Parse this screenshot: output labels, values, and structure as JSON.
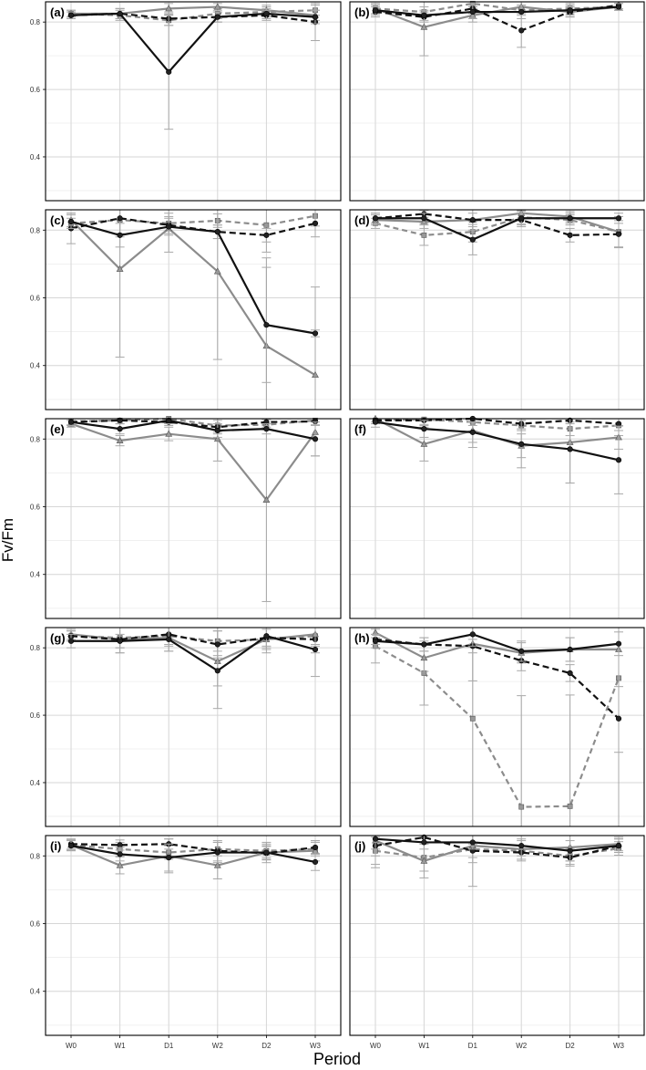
{
  "figure": {
    "ylabel": "Fv/Fm",
    "xlabel": "Period",
    "categories": [
      "W0",
      "W1",
      "D1",
      "W2",
      "D2",
      "W3"
    ],
    "y_ticks": [
      "0.4",
      "0.6",
      "0.8"
    ]
  },
  "colors": {
    "black": "#111111",
    "gray": "#8c8c8c",
    "grid": "#d6d6d6",
    "frame": "#000000"
  },
  "chart_data": [
    {
      "panel": "(a)",
      "type": "line",
      "ylim": [
        0.27,
        0.86
      ],
      "series": [
        {
          "name": "black-solid",
          "values": [
            0.82,
            0.825,
            0.652,
            0.815,
            0.825,
            0.815
          ],
          "err": [
            0.01,
            0.015,
            0.17,
            0.015,
            0.015,
            0.02
          ]
        },
        {
          "name": "gray-solid",
          "values": [
            0.825,
            0.825,
            0.84,
            0.845,
            0.835,
            0.82
          ],
          "err": [
            0.01,
            0.015,
            0.015,
            0.01,
            0.015,
            0.015
          ]
        },
        {
          "name": "black-dashed",
          "values": [
            0.82,
            0.825,
            0.81,
            0.815,
            0.82,
            0.8
          ],
          "err": [
            0.01,
            0.015,
            0.02,
            0.015,
            0.015,
            0.055
          ]
        },
        {
          "name": "gray-dashed",
          "values": [
            0.825,
            0.82,
            0.805,
            0.825,
            0.83,
            0.835
          ],
          "err": [
            0.01,
            0.015,
            0.015,
            0.015,
            0.015,
            0.015
          ]
        }
      ]
    },
    {
      "panel": "(b)",
      "type": "line",
      "ylim": [
        0.27,
        0.86
      ],
      "series": [
        {
          "name": "black-solid",
          "values": [
            0.835,
            0.82,
            0.83,
            0.83,
            0.835,
            0.845
          ],
          "err": [
            0.015,
            0.015,
            0.02,
            0.02,
            0.015,
            0.01
          ]
        },
        {
          "name": "gray-solid",
          "values": [
            0.84,
            0.785,
            0.82,
            0.845,
            0.83,
            0.845
          ],
          "err": [
            0.015,
            0.085,
            0.02,
            0.015,
            0.015,
            0.01
          ]
        },
        {
          "name": "black-dashed",
          "values": [
            0.83,
            0.815,
            0.84,
            0.775,
            0.83,
            0.85
          ],
          "err": [
            0.015,
            0.015,
            0.015,
            0.05,
            0.015,
            0.01
          ]
        },
        {
          "name": "gray-dashed",
          "values": [
            0.84,
            0.83,
            0.855,
            0.835,
            0.84,
            0.845
          ],
          "err": [
            0.015,
            0.015,
            0.01,
            0.015,
            0.015,
            0.01
          ]
        }
      ]
    },
    {
      "panel": "(c)",
      "type": "line",
      "ylim": [
        0.27,
        0.86
      ],
      "series": [
        {
          "name": "black-solid",
          "values": [
            0.825,
            0.785,
            0.81,
            0.795,
            0.52,
            0.495
          ],
          "err": [
            0.02,
            0.035,
            0.025,
            0.02,
            0.17,
            0.01
          ]
        },
        {
          "name": "gray-solid",
          "values": [
            0.83,
            0.685,
            0.805,
            0.678,
            0.458,
            0.372
          ],
          "err": [
            0.02,
            0.26,
            0.07,
            0.26,
            0.26,
            0.26
          ]
        },
        {
          "name": "black-dashed",
          "values": [
            0.805,
            0.835,
            0.815,
            0.795,
            0.785,
            0.82
          ],
          "err": [
            0.045,
            0.045,
            0.025,
            0.02,
            0.02,
            0.04
          ]
        },
        {
          "name": "gray-dashed",
          "values": [
            0.82,
            0.83,
            0.82,
            0.828,
            0.815,
            0.842
          ],
          "err": [
            0.015,
            0.05,
            0.03,
            0.02,
            0.08,
            0.03
          ]
        }
      ]
    },
    {
      "panel": "(d)",
      "type": "line",
      "ylim": [
        0.27,
        0.86
      ],
      "series": [
        {
          "name": "black-solid",
          "values": [
            0.835,
            0.835,
            0.772,
            0.835,
            0.835,
            0.835
          ],
          "err": [
            0.015,
            0.015,
            0.045,
            0.02,
            0.015,
            0.015
          ]
        },
        {
          "name": "gray-solid",
          "values": [
            0.83,
            0.825,
            0.83,
            0.85,
            0.84,
            0.795
          ],
          "err": [
            0.015,
            0.02,
            0.02,
            0.015,
            0.015,
            0.045
          ]
        },
        {
          "name": "black-dashed",
          "values": [
            0.835,
            0.848,
            0.83,
            0.83,
            0.785,
            0.788
          ],
          "err": [
            0.015,
            0.01,
            0.03,
            0.02,
            0.02,
            0.04
          ]
        },
        {
          "name": "gray-dashed",
          "values": [
            0.82,
            0.785,
            0.795,
            0.838,
            0.83,
            0.795
          ],
          "err": [
            0.015,
            0.03,
            0.03,
            0.02,
            0.015,
            0.045
          ]
        }
      ]
    },
    {
      "panel": "(e)",
      "type": "line",
      "ylim": [
        0.27,
        0.86
      ],
      "series": [
        {
          "name": "black-solid",
          "values": [
            0.85,
            0.83,
            0.855,
            0.825,
            0.83,
            0.8
          ],
          "err": [
            0.01,
            0.015,
            0.01,
            0.02,
            0.015,
            0.05
          ]
        },
        {
          "name": "gray-solid",
          "values": [
            0.845,
            0.795,
            0.815,
            0.8,
            0.62,
            0.82
          ],
          "err": [
            0.01,
            0.015,
            0.02,
            0.065,
            0.3,
            0.07
          ]
        },
        {
          "name": "black-dashed",
          "values": [
            0.85,
            0.855,
            0.85,
            0.835,
            0.85,
            0.852
          ],
          "err": [
            0.01,
            0.01,
            0.01,
            0.02,
            0.015,
            0.01
          ]
        },
        {
          "name": "gray-dashed",
          "values": [
            0.852,
            0.855,
            0.86,
            0.84,
            0.842,
            0.855
          ],
          "err": [
            0.01,
            0.01,
            0.01,
            0.02,
            0.015,
            0.015
          ]
        }
      ]
    },
    {
      "panel": "(f)",
      "type": "line",
      "ylim": [
        0.27,
        0.86
      ],
      "series": [
        {
          "name": "black-solid",
          "values": [
            0.85,
            0.83,
            0.82,
            0.785,
            0.77,
            0.738
          ],
          "err": [
            0.015,
            0.025,
            0.03,
            0.07,
            0.1,
            0.1
          ]
        },
        {
          "name": "gray-solid",
          "values": [
            0.86,
            0.785,
            0.825,
            0.78,
            0.79,
            0.805
          ],
          "err": [
            0.01,
            0.05,
            0.05,
            0.035,
            0.12,
            0.035
          ]
        },
        {
          "name": "black-dashed",
          "values": [
            0.855,
            0.855,
            0.86,
            0.845,
            0.855,
            0.845
          ],
          "err": [
            0.01,
            0.015,
            0.01,
            0.015,
            0.01,
            0.02
          ]
        },
        {
          "name": "gray-dashed",
          "values": [
            0.855,
            0.858,
            0.85,
            0.84,
            0.83,
            0.84
          ],
          "err": [
            0.01,
            0.015,
            0.01,
            0.015,
            0.02,
            0.03
          ]
        }
      ]
    },
    {
      "panel": "(g)",
      "type": "line",
      "ylim": [
        0.27,
        0.86
      ],
      "series": [
        {
          "name": "black-solid",
          "values": [
            0.82,
            0.82,
            0.825,
            0.732,
            0.835,
            0.795
          ],
          "err": [
            0.02,
            0.02,
            0.035,
            0.045,
            0.03,
            0.08
          ]
        },
        {
          "name": "gray-solid",
          "values": [
            0.84,
            0.825,
            0.83,
            0.76,
            0.825,
            0.84
          ],
          "err": [
            0.015,
            0.04,
            0.04,
            0.14,
            0.04,
            0.03
          ]
        },
        {
          "name": "black-dashed",
          "values": [
            0.835,
            0.825,
            0.84,
            0.81,
            0.83,
            0.825
          ],
          "err": [
            0.015,
            0.04,
            0.03,
            0.04,
            0.03,
            0.04
          ]
        },
        {
          "name": "gray-dashed",
          "values": [
            0.835,
            0.83,
            0.835,
            0.82,
            0.825,
            0.835
          ],
          "err": [
            0.015,
            0.03,
            0.03,
            0.03,
            0.03,
            0.03
          ]
        }
      ]
    },
    {
      "panel": "(h)",
      "type": "line",
      "ylim": [
        0.27,
        0.86
      ],
      "series": [
        {
          "name": "black-solid",
          "values": [
            0.82,
            0.81,
            0.84,
            0.79,
            0.795,
            0.812
          ],
          "err": [
            0.02,
            0.02,
            0.035,
            0.03,
            0.035,
            0.035
          ]
        },
        {
          "name": "gray-solid",
          "values": [
            0.845,
            0.77,
            0.812,
            0.785,
            0.795,
            0.795
          ],
          "err": [
            0.015,
            0.04,
            0.11,
            0.03,
            0.035,
            0.11
          ]
        },
        {
          "name": "black-dashed",
          "values": [
            0.825,
            0.81,
            0.805,
            0.762,
            0.725,
            0.59
          ],
          "err": [
            0.015,
            0.02,
            0.02,
            0.03,
            0.025,
            0.33
          ]
        },
        {
          "name": "gray-dashed",
          "values": [
            0.805,
            0.725,
            0.59,
            0.328,
            0.33,
            0.71
          ],
          "err": [
            0.05,
            0.095,
            0.33,
            0.33,
            0.33,
            0.22
          ]
        }
      ]
    },
    {
      "panel": "(i)",
      "type": "line",
      "ylim": [
        0.27,
        0.86
      ],
      "series": [
        {
          "name": "black-solid",
          "values": [
            0.83,
            0.805,
            0.795,
            0.81,
            0.81,
            0.782
          ],
          "err": [
            0.015,
            0.02,
            0.04,
            0.03,
            0.02,
            0.025
          ]
        },
        {
          "name": "gray-solid",
          "values": [
            0.832,
            0.772,
            0.8,
            0.772,
            0.81,
            0.815
          ],
          "err": [
            0.015,
            0.025,
            0.05,
            0.04,
            0.03,
            0.03
          ]
        },
        {
          "name": "black-dashed",
          "values": [
            0.835,
            0.832,
            0.835,
            0.815,
            0.808,
            0.825
          ],
          "err": [
            0.015,
            0.015,
            0.015,
            0.03,
            0.02,
            0.02
          ]
        },
        {
          "name": "gray-dashed",
          "values": [
            0.832,
            0.82,
            0.81,
            0.82,
            0.815,
            0.82
          ],
          "err": [
            0.015,
            0.02,
            0.02,
            0.02,
            0.02,
            0.02
          ]
        }
      ]
    },
    {
      "panel": "(j)",
      "type": "line",
      "ylim": [
        0.27,
        0.86
      ],
      "series": [
        {
          "name": "black-solid",
          "values": [
            0.85,
            0.84,
            0.84,
            0.83,
            0.815,
            0.83
          ],
          "err": [
            0.03,
            0.02,
            0.02,
            0.03,
            0.03,
            0.02
          ]
        },
        {
          "name": "gray-solid",
          "values": [
            0.845,
            0.785,
            0.83,
            0.82,
            0.825,
            0.835
          ],
          "err": [
            0.08,
            0.05,
            0.12,
            0.03,
            0.04,
            0.02
          ]
        },
        {
          "name": "black-dashed",
          "values": [
            0.83,
            0.855,
            0.815,
            0.81,
            0.795,
            0.83
          ],
          "err": [
            0.03,
            0.015,
            0.02,
            0.02,
            0.025,
            0.02
          ]
        },
        {
          "name": "gray-dashed",
          "values": [
            0.815,
            0.795,
            0.82,
            0.815,
            0.8,
            0.822
          ],
          "err": [
            0.04,
            0.04,
            0.04,
            0.03,
            0.025,
            0.02
          ]
        }
      ]
    }
  ]
}
